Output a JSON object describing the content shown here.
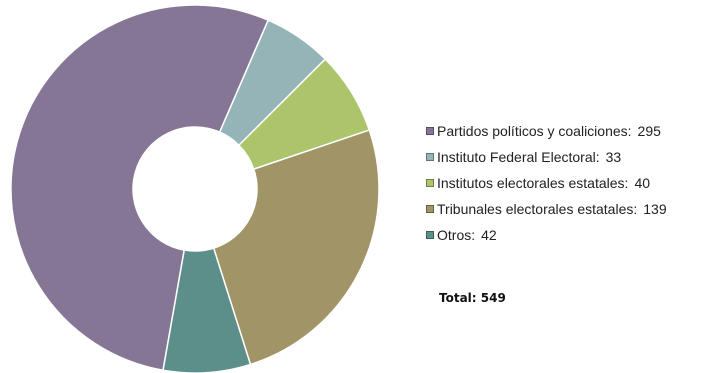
{
  "chart_data": {
    "type": "pie",
    "donut": true,
    "series": [
      {
        "name": "Partidos políticos y coaliciones:",
        "value": 295,
        "color": "#857696"
      },
      {
        "name": "Instituto Federal Electoral:",
        "value": 33,
        "color": "#95b4b8"
      },
      {
        "name": "Institutos electorales estatales:",
        "value": 40,
        "color": "#acc56a"
      },
      {
        "name": "Tribunales electorales estatales:",
        "value": 139,
        "color": "#a19467"
      },
      {
        "name": "Otros:",
        "value": 42,
        "color": "#5c8f89"
      }
    ],
    "start_angle_deg": 190,
    "legend_position": "right",
    "total_label": "Total: 549"
  }
}
